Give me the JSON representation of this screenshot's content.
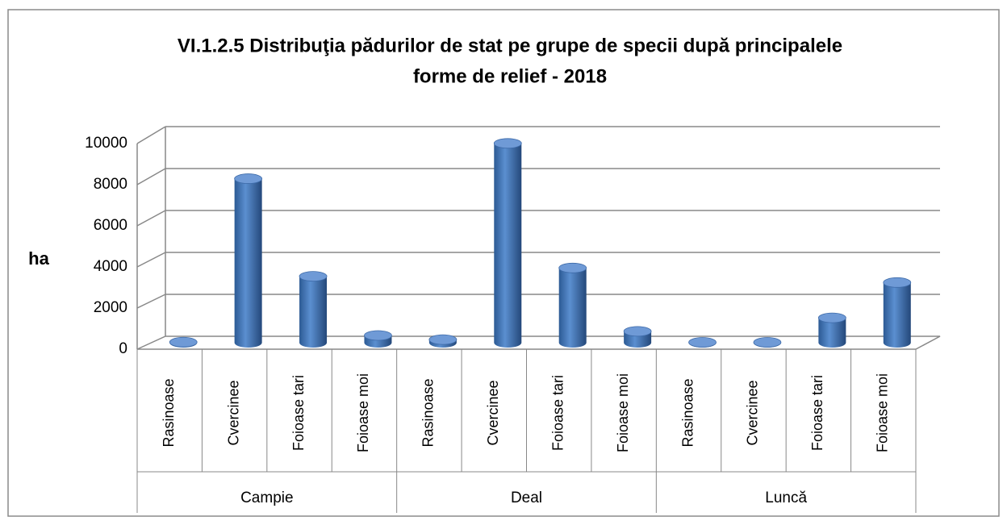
{
  "chart_data": {
    "type": "bar3d",
    "title": [
      "VI.1.2.5 Distribuţia pădurilor de stat pe grupe de specii după principalele",
      "forme de relief - 2018"
    ],
    "ylabel": "ha",
    "groups": [
      "Campie",
      "Deal",
      "Luncă"
    ],
    "categories": [
      "Rasinoase",
      "Cvercinee",
      "Foioase tari",
      "Foioase moi",
      "Rasinoase",
      "Cvercinee",
      "Foioase tari",
      "Foioase moi",
      "Rasinoase",
      "Cvercinee",
      "Foioase tari",
      "Foioase moi"
    ],
    "values": [
      30,
      7900,
      3200,
      350,
      150,
      9600,
      3600,
      550,
      20,
      20,
      1200,
      2900
    ],
    "color": "#4a7ebb",
    "ylim": [
      0,
      10000
    ],
    "yticks": [
      0,
      2000,
      4000,
      6000,
      8000,
      10000
    ],
    "grid": true
  }
}
